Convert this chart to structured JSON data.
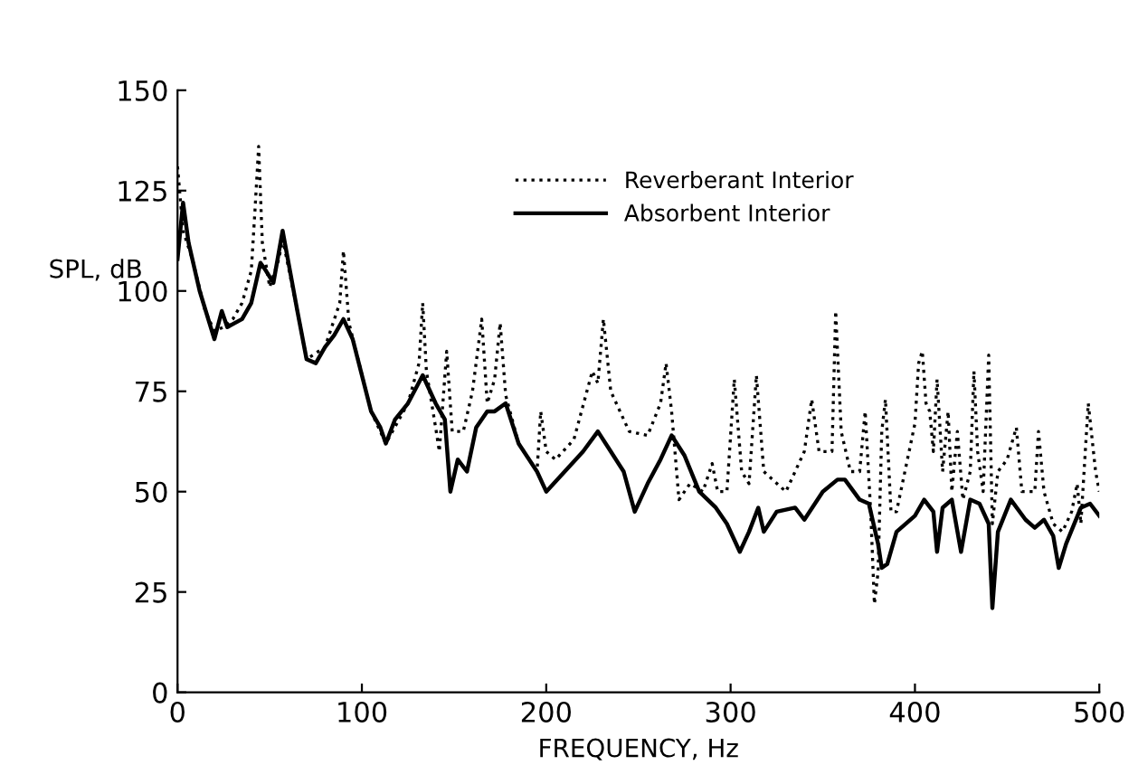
{
  "chart_data": {
    "type": "line",
    "xlabel": "FREQUENCY, Hz",
    "ylabel": "SPL, dB",
    "xlim": [
      0,
      500
    ],
    "ylim": [
      0,
      150
    ],
    "xticks": [
      0,
      100,
      200,
      300,
      400,
      500
    ],
    "yticks": [
      0,
      25,
      50,
      75,
      100,
      125,
      150
    ],
    "grid": false,
    "legend": "top",
    "marker": "none",
    "series": [
      {
        "name": "Reverberant Interior",
        "color": "#000000",
        "line_style": "dotted",
        "x": [
          0,
          3,
          8,
          15,
          20,
          25,
          30,
          35,
          40,
          42,
          44,
          46,
          50,
          55,
          57,
          65,
          70,
          80,
          88,
          90,
          93,
          105,
          113,
          125,
          131,
          133,
          135,
          140,
          142,
          146,
          149,
          155,
          160,
          165,
          168,
          172,
          175,
          178,
          185,
          195,
          197,
          200,
          205,
          215,
          225,
          228,
          231,
          235,
          245,
          255,
          262,
          265,
          268,
          272,
          278,
          285,
          290,
          293,
          298,
          302,
          306,
          310,
          314,
          318,
          330,
          340,
          344,
          348,
          355,
          357,
          360,
          365,
          370,
          373,
          376,
          378,
          380,
          382,
          384,
          387,
          390,
          400,
          402,
          404,
          406,
          408,
          410,
          412,
          415,
          418,
          420,
          423,
          426,
          430,
          432,
          434,
          437,
          440,
          442,
          445,
          450,
          455,
          458,
          465,
          467,
          470,
          475,
          480,
          485,
          488,
          490,
          494,
          498,
          500
        ],
        "values": [
          131,
          115,
          108,
          95,
          90,
          91,
          93,
          97,
          105,
          120,
          136,
          112,
          101,
          108,
          113,
          95,
          83,
          86,
          97,
          110,
          92,
          70,
          62,
          72,
          82,
          97,
          80,
          66,
          60,
          85,
          65,
          65,
          75,
          93,
          72,
          78,
          92,
          74,
          62,
          55,
          70,
          60,
          58,
          63,
          80,
          77,
          93,
          75,
          65,
          64,
          72,
          82,
          70,
          48,
          52,
          50,
          57,
          50,
          50,
          78,
          55,
          52,
          79,
          55,
          50,
          60,
          73,
          60,
          60,
          95,
          65,
          55,
          55,
          70,
          45,
          22,
          30,
          65,
          73,
          45,
          45,
          67,
          82,
          85,
          72,
          70,
          60,
          78,
          55,
          70,
          50,
          65,
          48,
          55,
          80,
          60,
          50,
          84,
          42,
          55,
          58,
          66,
          50,
          50,
          65,
          50,
          42,
          40,
          45,
          52,
          42,
          72,
          55,
          50
        ]
      },
      {
        "name": "Absorbent Interior",
        "color": "#000000",
        "line_style": "solid",
        "x": [
          0,
          3,
          6,
          12,
          20,
          24,
          27,
          35,
          40,
          45,
          48,
          52,
          57,
          65,
          70,
          75,
          80,
          85,
          90,
          95,
          105,
          110,
          113,
          118,
          125,
          133,
          140,
          145,
          148,
          152,
          157,
          162,
          168,
          172,
          178,
          185,
          195,
          200,
          210,
          220,
          228,
          235,
          242,
          248,
          255,
          262,
          268,
          275,
          283,
          292,
          298,
          305,
          310,
          315,
          318,
          325,
          335,
          340,
          350,
          358,
          362,
          370,
          375,
          380,
          382,
          385,
          390,
          400,
          405,
          410,
          412,
          415,
          420,
          425,
          430,
          435,
          440,
          442,
          445,
          452,
          460,
          465,
          470,
          475,
          478,
          482,
          490,
          495,
          500
        ],
        "values": [
          108,
          122,
          112,
          100,
          88,
          95,
          91,
          93,
          97,
          107,
          105,
          102,
          115,
          95,
          83,
          82,
          86,
          89,
          93,
          88,
          70,
          66,
          62,
          68,
          72,
          79,
          72,
          68,
          50,
          58,
          55,
          66,
          70,
          70,
          72,
          62,
          55,
          50,
          55,
          60,
          65,
          60,
          55,
          45,
          52,
          58,
          64,
          59,
          50,
          46,
          42,
          35,
          40,
          46,
          40,
          45,
          46,
          43,
          50,
          53,
          53,
          48,
          47,
          37,
          31,
          32,
          40,
          44,
          48,
          45,
          35,
          46,
          48,
          35,
          48,
          47,
          42,
          21,
          40,
          48,
          43,
          41,
          43,
          39,
          31,
          37,
          46,
          47,
          44
        ]
      }
    ]
  }
}
